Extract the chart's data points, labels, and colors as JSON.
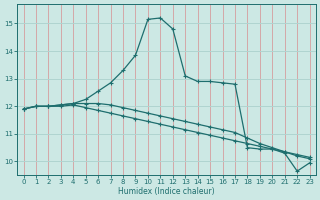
{
  "xlabel": "Humidex (Indice chaleur)",
  "xlim": [
    -0.5,
    23.5
  ],
  "ylim": [
    9.5,
    15.7
  ],
  "yticks": [
    10,
    11,
    12,
    13,
    14,
    15
  ],
  "xticks": [
    0,
    1,
    2,
    3,
    4,
    5,
    6,
    7,
    8,
    9,
    10,
    11,
    12,
    13,
    14,
    15,
    16,
    17,
    18,
    19,
    20,
    21,
    22,
    23
  ],
  "bg_color": "#cce8e4",
  "hgrid_color": "#b0d4d0",
  "vgrid_color": "#d4a8a8",
  "line_color": "#1e6e6e",
  "line1_x": [
    0,
    1,
    2,
    3,
    4,
    5,
    6,
    7,
    8,
    9,
    10,
    11,
    12,
    13,
    14,
    15,
    16,
    17,
    18,
    19,
    20,
    21,
    22,
    23
  ],
  "line1_y": [
    11.9,
    12.0,
    12.0,
    12.05,
    12.1,
    12.25,
    12.55,
    12.85,
    13.3,
    13.85,
    15.15,
    15.2,
    14.8,
    13.1,
    12.9,
    12.9,
    12.85,
    12.8,
    10.5,
    10.45,
    10.45,
    10.3,
    9.65,
    9.95
  ],
  "line2_x": [
    0,
    1,
    2,
    3,
    4,
    5,
    6,
    7,
    8,
    9,
    10,
    11,
    12,
    13,
    14,
    15,
    16,
    17,
    18,
    19,
    20,
    21,
    22,
    23
  ],
  "line2_y": [
    11.9,
    12.0,
    12.0,
    12.05,
    12.1,
    12.1,
    12.1,
    12.05,
    11.95,
    11.85,
    11.75,
    11.65,
    11.55,
    11.45,
    11.35,
    11.25,
    11.15,
    11.05,
    10.85,
    10.65,
    10.5,
    10.35,
    10.2,
    10.1
  ],
  "line3_x": [
    0,
    1,
    2,
    3,
    4,
    5,
    6,
    7,
    8,
    9,
    10,
    11,
    12,
    13,
    14,
    15,
    16,
    17,
    18,
    19,
    20,
    21,
    22,
    23
  ],
  "line3_y": [
    11.9,
    12.0,
    12.0,
    12.0,
    12.05,
    11.95,
    11.85,
    11.75,
    11.65,
    11.55,
    11.45,
    11.35,
    11.25,
    11.15,
    11.05,
    10.95,
    10.85,
    10.75,
    10.65,
    10.55,
    10.45,
    10.35,
    10.25,
    10.15
  ]
}
